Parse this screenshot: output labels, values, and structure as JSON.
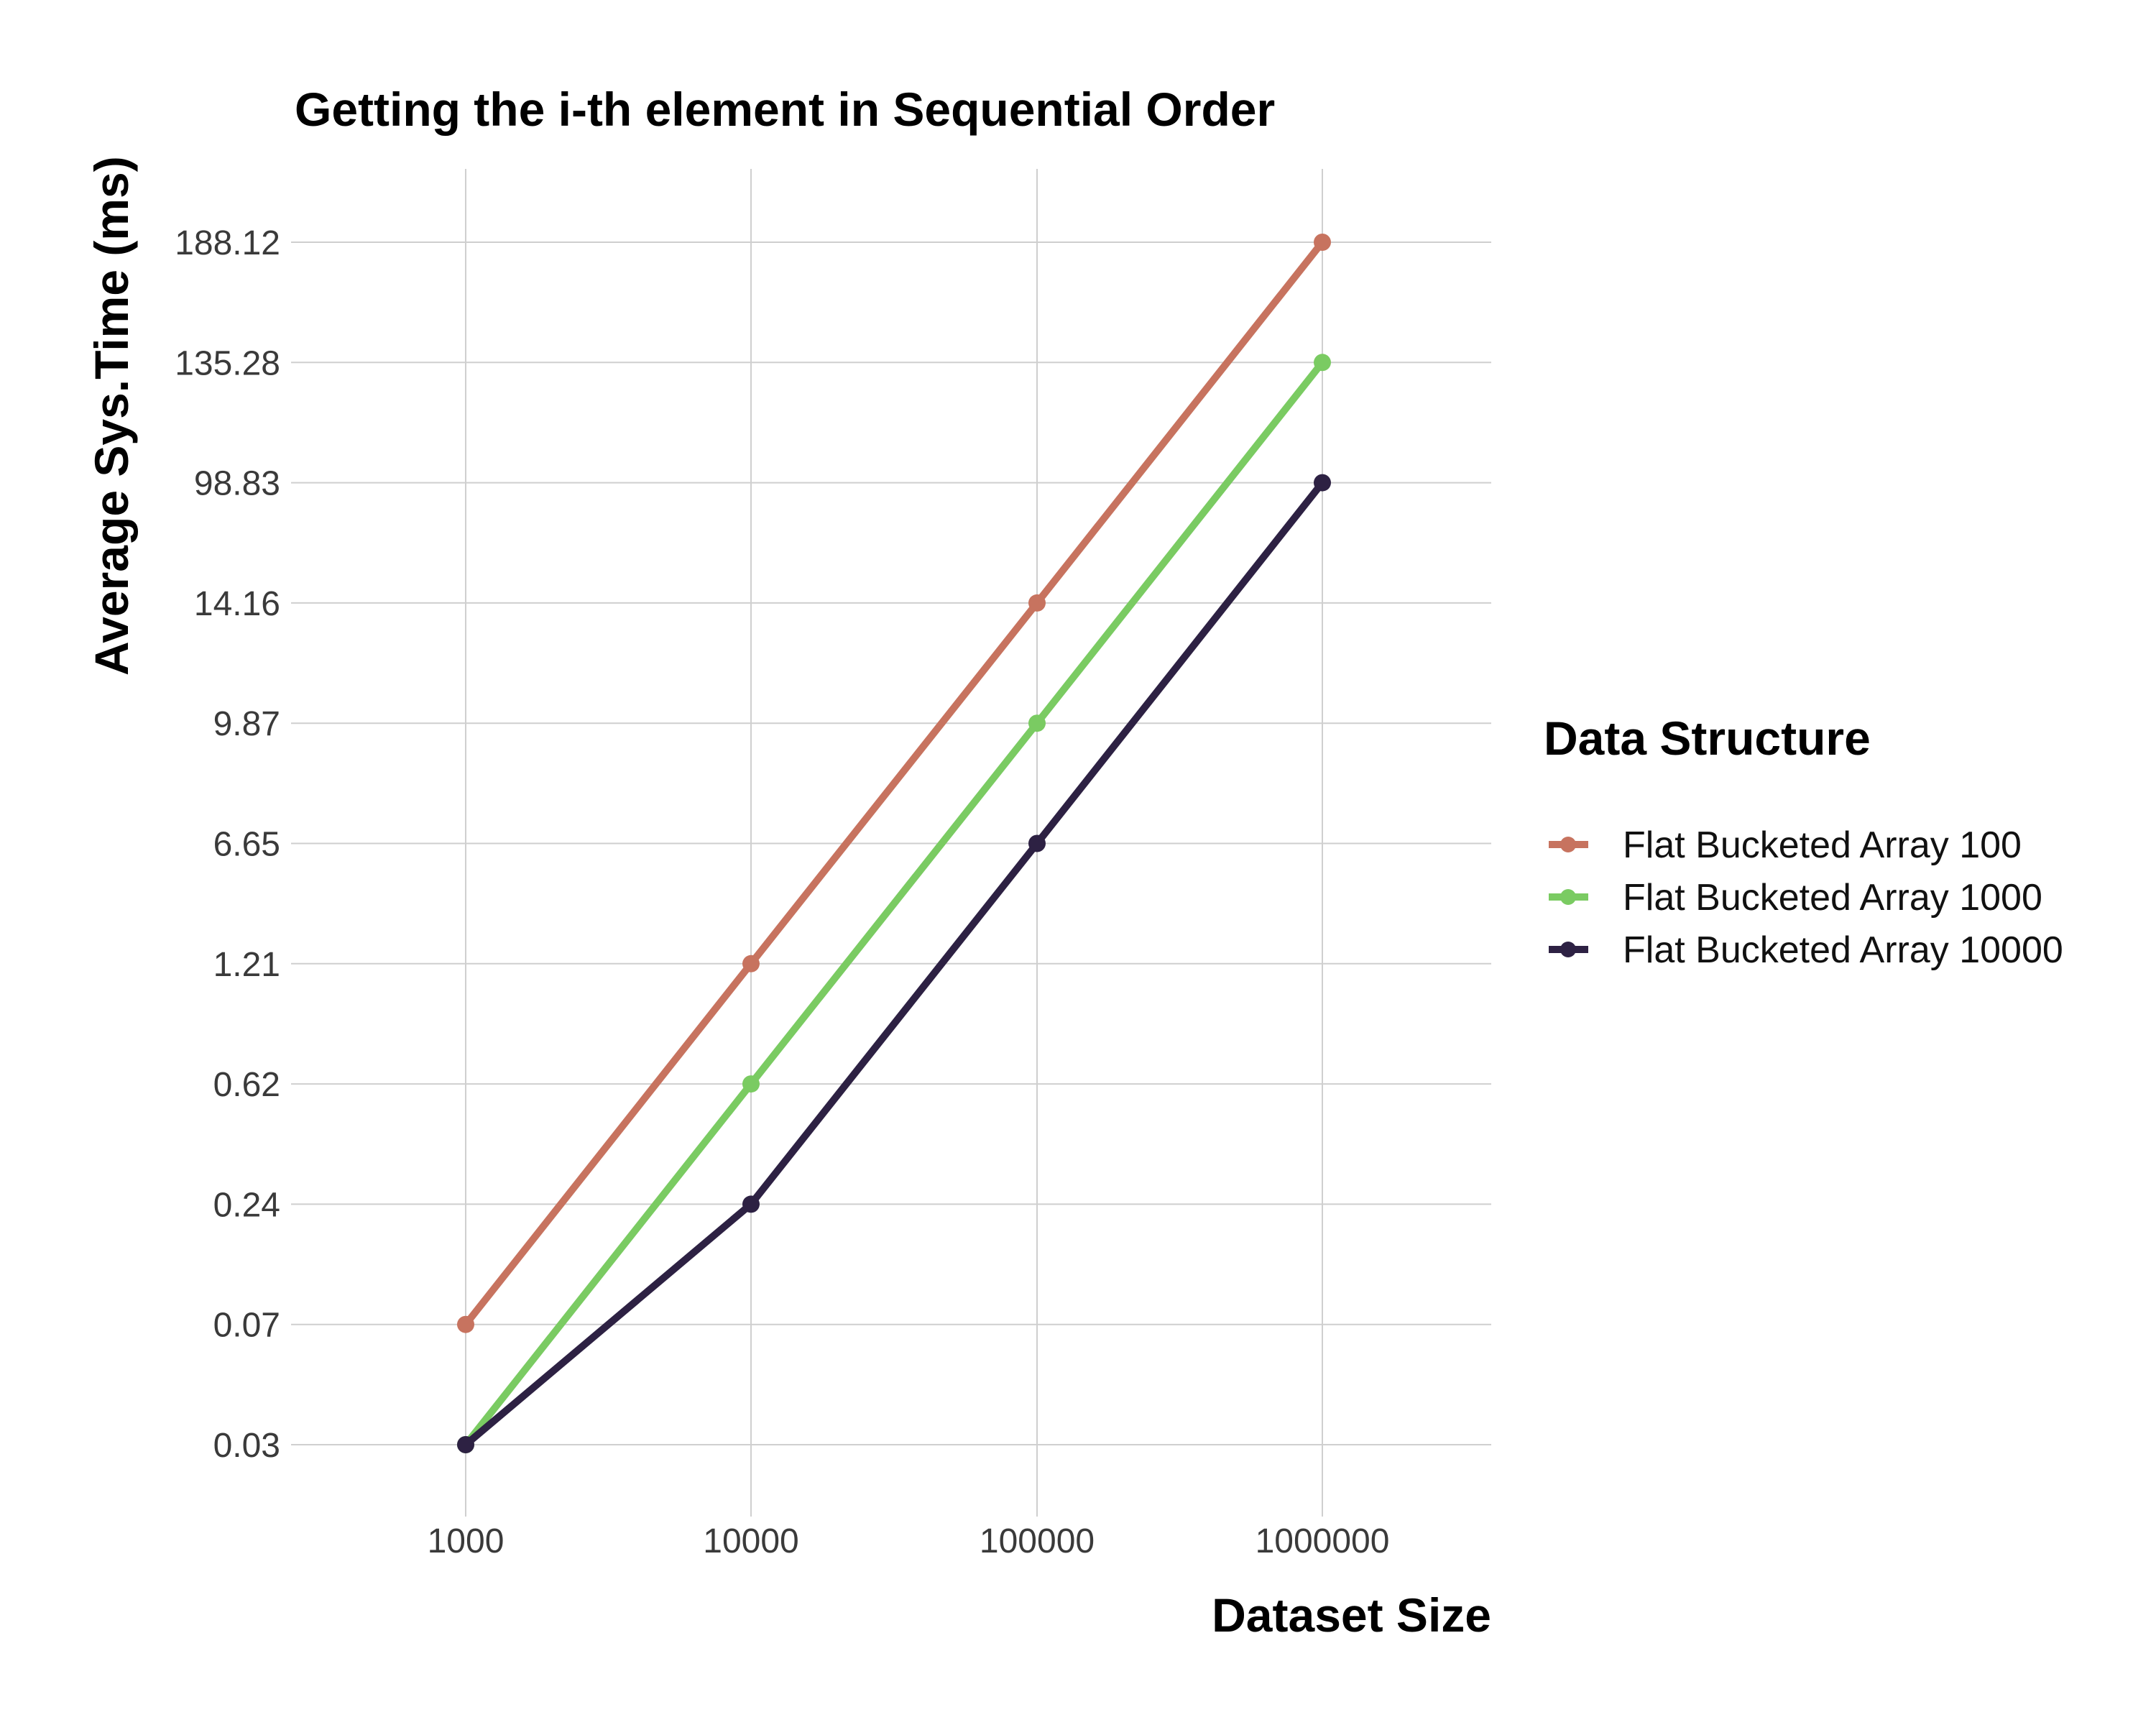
{
  "chart_data": {
    "type": "line",
    "title": "Getting the i-th element in Sequential Order",
    "xlabel": "Dataset Size",
    "ylabel": "Average Sys.Time (ms)",
    "x_scale": "categorical",
    "y_scale": "categorical (tick labels only, equally spaced)",
    "categories": [
      "1000",
      "10000",
      "100000",
      "1000000"
    ],
    "y_ticks": [
      "0.03",
      "0.07",
      "0.24",
      "0.62",
      "1.21",
      "6.65",
      "9.87",
      "14.16",
      "98.83",
      "135.28",
      "188.12"
    ],
    "grid": true,
    "legend": {
      "title": "Data Structure",
      "placement": "right"
    },
    "series": [
      {
        "name": "Flat Bucketed Array 100",
        "color": "#C7735F",
        "values": [
          0.07,
          1.21,
          14.16,
          188.12
        ]
      },
      {
        "name": "Flat Bucketed Array 1000",
        "color": "#7ACB62",
        "values": [
          0.03,
          0.62,
          9.87,
          135.28
        ]
      },
      {
        "name": "Flat Bucketed Array 10000",
        "color": "#2D2143",
        "values": [
          0.03,
          0.24,
          6.65,
          98.83
        ]
      }
    ]
  }
}
